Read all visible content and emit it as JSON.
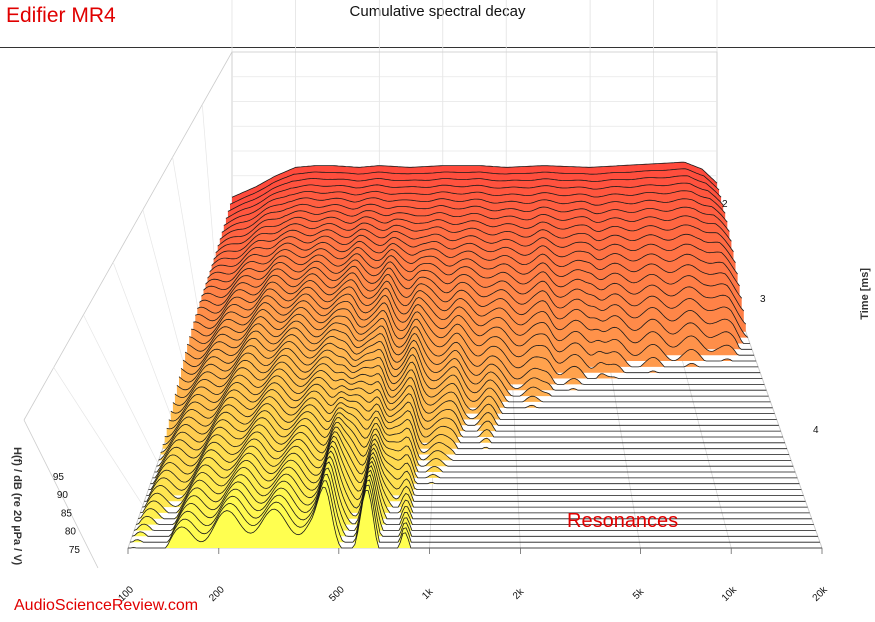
{
  "header": {
    "title": "Edifier MR4"
  },
  "watermark": "AudioScienceReview.com",
  "annotation": "Resonances",
  "colors": {
    "brand_red": "#e00000",
    "early_slice": "#ff4a3c",
    "mid_slice": "#ffb050",
    "late_slice": "#ffff50"
  },
  "chart_data": {
    "type": "waterfall",
    "title": "Cumulative spectral decay",
    "xlabel": "",
    "ylabel": "H(f) / dB (re 20 µPa / V)",
    "zlabel": "Time [ms]",
    "x_scale": "log",
    "xlim": [
      100,
      20000
    ],
    "ylim": [
      73,
      98
    ],
    "zlim": [
      1.4,
      4.6
    ],
    "x_ticks": [
      {
        "value": 100,
        "label": "100"
      },
      {
        "value": 200,
        "label": "200"
      },
      {
        "value": 500,
        "label": "500"
      },
      {
        "value": 1000,
        "label": "1k"
      },
      {
        "value": 2000,
        "label": "2k"
      },
      {
        "value": 5000,
        "label": "5k"
      },
      {
        "value": 10000,
        "label": "10k"
      },
      {
        "value": 20000,
        "label": "20k"
      }
    ],
    "y_ticks": [
      {
        "value": 75,
        "label": "75"
      },
      {
        "value": 80,
        "label": "80"
      },
      {
        "value": 85,
        "label": "85"
      },
      {
        "value": 90,
        "label": "90"
      },
      {
        "value": 95,
        "label": "95"
      }
    ],
    "z_ticks": [
      {
        "value": 2,
        "label": "2"
      },
      {
        "value": 3,
        "label": "3"
      },
      {
        "value": 4,
        "label": "4"
      }
    ],
    "grid": true,
    "slice_count": 52,
    "time_range_ms": [
      1.4,
      4.6
    ],
    "first_slice_response_db": {
      "freq_hz": [
        100,
        130,
        160,
        200,
        250,
        300,
        400,
        500,
        700,
        1000,
        1500,
        2000,
        3000,
        5000,
        7000,
        10000,
        14000,
        17000,
        20000
      ],
      "level_db": [
        88,
        91,
        94,
        96.5,
        97,
        97,
        96.5,
        97,
        96.5,
        97,
        97,
        96.5,
        97,
        96.5,
        97,
        97.5,
        98,
        96,
        92
      ]
    },
    "resonance_peaks_hz": [
      450,
      620,
      820,
      1200,
      1600,
      2800,
      4500
    ],
    "final_slice_floor_db": 73
  }
}
